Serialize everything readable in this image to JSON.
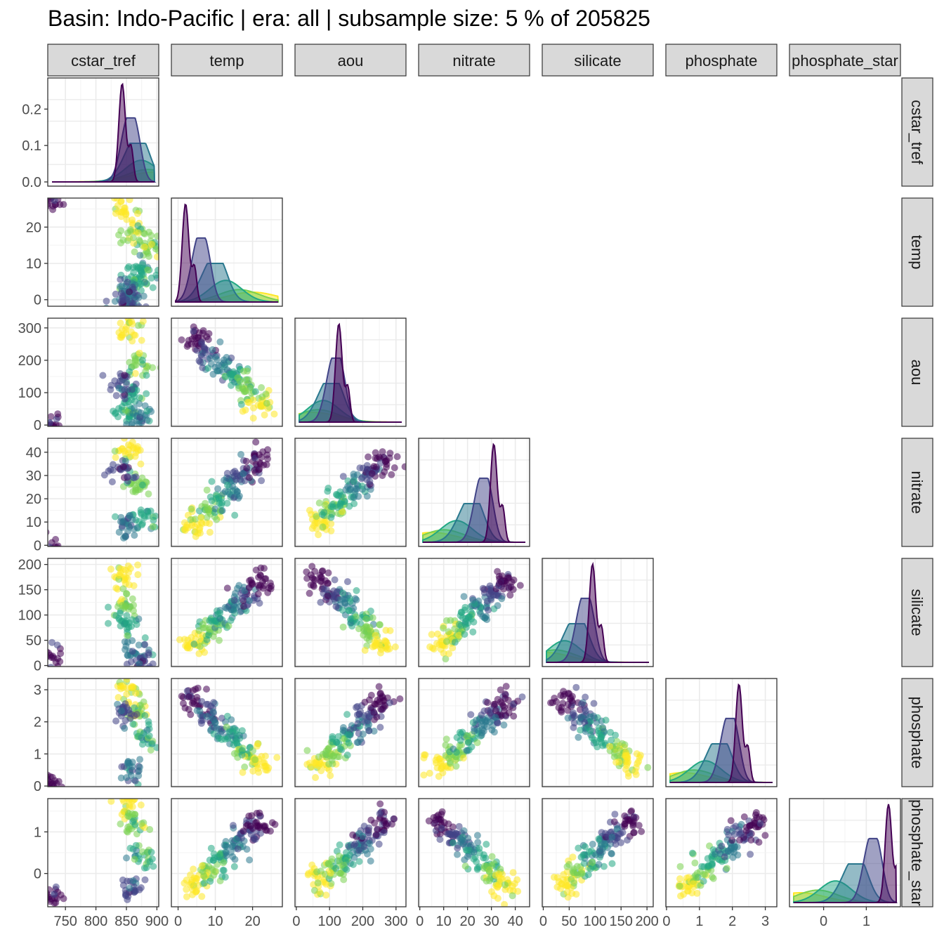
{
  "title": "Basin: Indo-Pacific | era: all | subsample size: 5 % of 205825",
  "chart_data": {
    "type": "scatter",
    "subtype": "pairs-matrix (lower triangle scatter, diagonal density)",
    "variables": [
      "cstar_tref",
      "temp",
      "aou",
      "nitrate",
      "silicate",
      "phosphate",
      "phosphate_star"
    ],
    "strip_labels": [
      "cstar_tref",
      "temp",
      "aou",
      "nitrate",
      "silicate",
      "phosphate",
      "phosphate_star"
    ],
    "ranges": {
      "cstar_tref": [
        721,
        903
      ],
      "temp": [
        -1.8,
        28
      ],
      "aou": [
        -4,
        330
      ],
      "nitrate": [
        -0.5,
        46
      ],
      "silicate": [
        -2,
        212
      ],
      "phosphate": [
        -0.02,
        3.35
      ],
      "phosphate_star": [
        -0.8,
        1.8
      ]
    },
    "ticks": {
      "cstar_tref": [
        750,
        800,
        850,
        900
      ],
      "temp": [
        0,
        10,
        20
      ],
      "aou": [
        0,
        100,
        200,
        300
      ],
      "nitrate": [
        0,
        10,
        20,
        30,
        40
      ],
      "silicate": [
        0,
        50,
        100,
        150,
        200
      ],
      "phosphate": [
        0,
        1,
        2,
        3
      ],
      "phosphate_star": [
        0,
        1
      ]
    },
    "tick_labels": {
      "cstar_tref": [
        "750",
        "800",
        "850",
        "900"
      ],
      "temp": [
        "0",
        "10",
        "20"
      ],
      "aou": [
        "0",
        "100",
        "200",
        "300"
      ],
      "nitrate": [
        "0",
        "10",
        "20",
        "30",
        "40"
      ],
      "silicate": [
        "0",
        "50",
        "100",
        "150",
        "200"
      ],
      "phosphate": [
        "0",
        "1",
        "2",
        "3"
      ],
      "phosphate_star": [
        "0",
        "1"
      ]
    },
    "diag_density_ticks": [
      0.0,
      0.1,
      0.2
    ],
    "diag_density_tick_labels": [
      "0.0",
      "0.1",
      "0.2"
    ],
    "diag_density_ylim": [
      0,
      0.27
    ],
    "color_groups": {
      "count": 6,
      "palette": [
        "#FDE725",
        "#7AD151",
        "#22A884",
        "#2A788E",
        "#414487",
        "#440154"
      ],
      "legend_shown": false
    },
    "cluster_points": {
      "temp": [
        [
          850,
          25
        ],
        [
          890,
          15
        ],
        [
          862,
          18
        ],
        [
          880,
          8
        ],
        [
          862,
          6
        ],
        [
          858,
          2
        ],
        [
          855,
          -1.5
        ],
        [
          850,
          0
        ],
        [
          725,
          27
        ]
      ],
      "aou": [
        [
          855,
          300
        ],
        [
          870,
          180
        ],
        [
          860,
          100
        ],
        [
          850,
          40
        ],
        [
          875,
          25
        ],
        [
          845,
          125
        ],
        [
          725,
          0
        ]
      ],
      "nitrate": [
        [
          855,
          40
        ],
        [
          870,
          25
        ],
        [
          880,
          12
        ],
        [
          850,
          8
        ],
        [
          845,
          32
        ],
        [
          725,
          0
        ]
      ],
      "silicate": [
        [
          845,
          180
        ],
        [
          845,
          120
        ],
        [
          850,
          80
        ],
        [
          865,
          30
        ],
        [
          880,
          5
        ],
        [
          725,
          15
        ]
      ],
      "phosphate": [
        [
          855,
          3.0
        ],
        [
          865,
          2.4
        ],
        [
          880,
          1.6
        ],
        [
          860,
          0.5
        ],
        [
          845,
          2.3
        ],
        [
          725,
          0.15
        ]
      ],
      "phosphate_star": [
        [
          850,
          1.65
        ],
        [
          860,
          1.2
        ],
        [
          875,
          0.4
        ],
        [
          860,
          -0.3
        ],
        [
          725,
          -0.55
        ]
      ]
    },
    "density_peaks": {
      "cstar_tref": {
        "purple_peak_x": 843,
        "purple_peak_density": 0.26,
        "yellow_peak_x": 895
      },
      "temp": {
        "purple_peak_x": 2.0,
        "yellow_peak_x": 20
      },
      "aou": {
        "purple_peak_x": 128,
        "yellow_peak_x": 50
      },
      "nitrate": {
        "purple_peak_x": 31,
        "yellow_peak_x": 5
      },
      "silicate": {
        "purple_peak_x": 95,
        "yellow_peak_x": 5
      },
      "phosphate": {
        "purple_peak_x": 2.2,
        "yellow_peak_x": 0.5
      },
      "phosphate_star": {
        "purple_peak_x": 1.52,
        "yellow_peak_x": -0.55
      }
    },
    "grid": true,
    "theme": "bw"
  }
}
